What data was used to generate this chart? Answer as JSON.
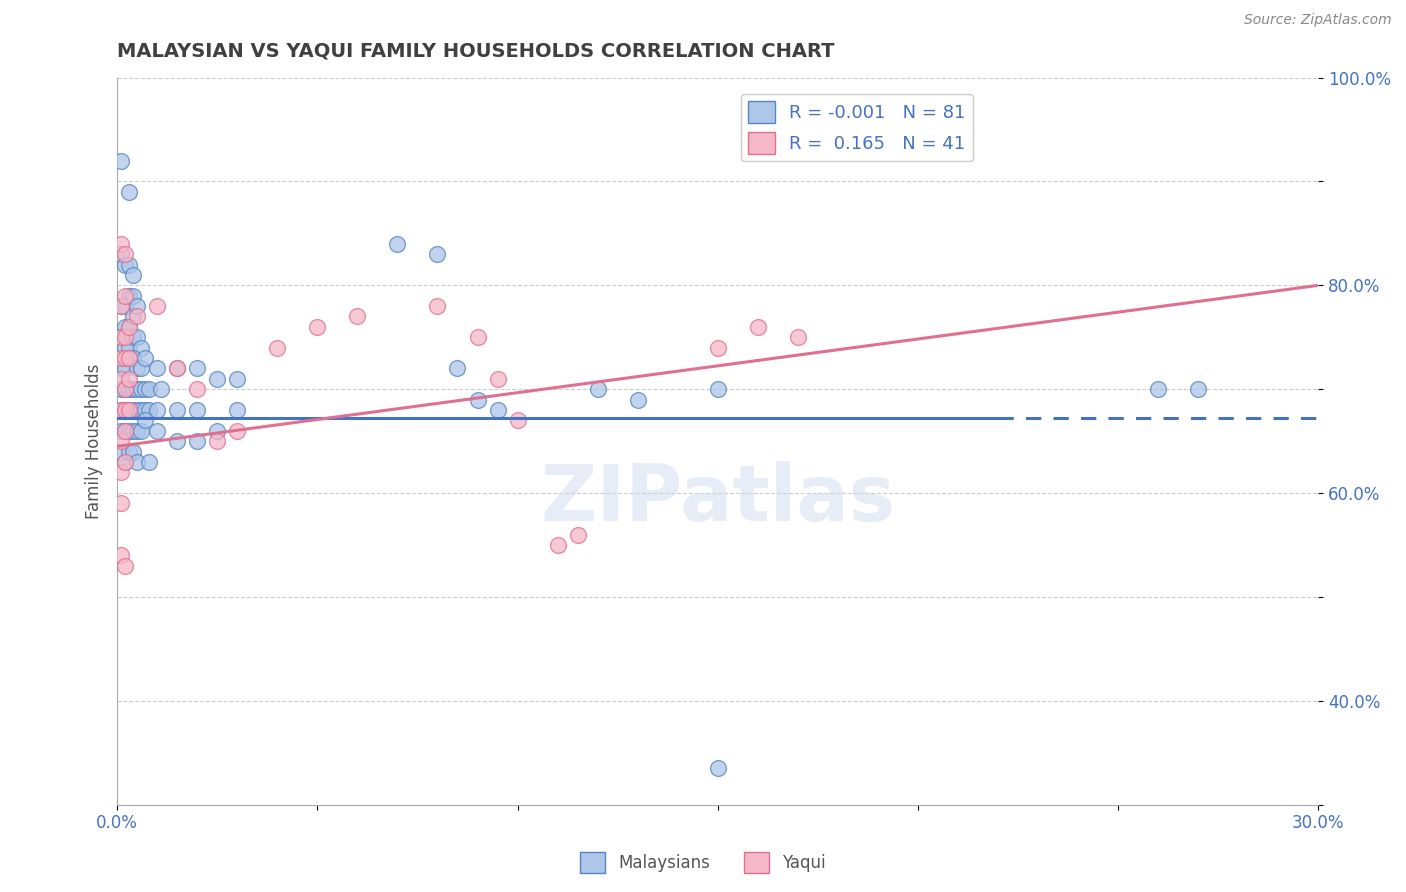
{
  "title": "MALAYSIAN VS YAQUI FAMILY HOUSEHOLDS CORRELATION CHART",
  "source": "Source: ZipAtlas.com",
  "ylabel": "Family Households",
  "xlim": [
    0.0,
    0.3
  ],
  "ylim": [
    0.3,
    1.0
  ],
  "grid_color": "#cccccc",
  "title_color": "#404040",
  "title_fontsize": 14,
  "watermark": "ZIPatlas",
  "legend_blue_label": "R = -0.001   N = 81",
  "legend_pink_label": "R =  0.165   N = 41",
  "blue_color": "#aec6e8",
  "pink_color": "#f4b8c8",
  "blue_edge_color": "#5585c5",
  "pink_edge_color": "#e07090",
  "blue_line_color": "#4472c4",
  "pink_line_color": "#e07090",
  "tick_color": "#4472c4",
  "axis_label_color": "#555555",
  "blue_line_y_at_0": 0.672,
  "blue_line_y_at_30": 0.672,
  "pink_line_y_at_0": 0.645,
  "pink_line_y_at_30": 0.8,
  "blue_points": [
    [
      0.001,
      0.92
    ],
    [
      0.003,
      0.89
    ],
    [
      0.001,
      0.83
    ],
    [
      0.002,
      0.82
    ],
    [
      0.003,
      0.82
    ],
    [
      0.004,
      0.81
    ],
    [
      0.001,
      0.78
    ],
    [
      0.002,
      0.78
    ],
    [
      0.003,
      0.79
    ],
    [
      0.004,
      0.79
    ],
    [
      0.002,
      0.76
    ],
    [
      0.003,
      0.76
    ],
    [
      0.004,
      0.77
    ],
    [
      0.005,
      0.78
    ],
    [
      0.001,
      0.75
    ],
    [
      0.002,
      0.74
    ],
    [
      0.003,
      0.74
    ],
    [
      0.004,
      0.75
    ],
    [
      0.005,
      0.75
    ],
    [
      0.006,
      0.74
    ],
    [
      0.001,
      0.72
    ],
    [
      0.002,
      0.72
    ],
    [
      0.003,
      0.73
    ],
    [
      0.004,
      0.73
    ],
    [
      0.005,
      0.72
    ],
    [
      0.006,
      0.72
    ],
    [
      0.007,
      0.73
    ],
    [
      0.001,
      0.7
    ],
    [
      0.002,
      0.7
    ],
    [
      0.003,
      0.7
    ],
    [
      0.004,
      0.7
    ],
    [
      0.005,
      0.7
    ],
    [
      0.006,
      0.7
    ],
    [
      0.007,
      0.7
    ],
    [
      0.008,
      0.7
    ],
    [
      0.001,
      0.68
    ],
    [
      0.002,
      0.68
    ],
    [
      0.003,
      0.68
    ],
    [
      0.004,
      0.68
    ],
    [
      0.005,
      0.68
    ],
    [
      0.006,
      0.68
    ],
    [
      0.007,
      0.68
    ],
    [
      0.008,
      0.68
    ],
    [
      0.001,
      0.66
    ],
    [
      0.002,
      0.66
    ],
    [
      0.003,
      0.66
    ],
    [
      0.004,
      0.66
    ],
    [
      0.005,
      0.66
    ],
    [
      0.006,
      0.66
    ],
    [
      0.007,
      0.67
    ],
    [
      0.001,
      0.64
    ],
    [
      0.002,
      0.63
    ],
    [
      0.003,
      0.64
    ],
    [
      0.004,
      0.64
    ],
    [
      0.005,
      0.63
    ],
    [
      0.008,
      0.63
    ],
    [
      0.01,
      0.72
    ],
    [
      0.01,
      0.68
    ],
    [
      0.01,
      0.66
    ],
    [
      0.011,
      0.7
    ],
    [
      0.015,
      0.72
    ],
    [
      0.015,
      0.68
    ],
    [
      0.015,
      0.65
    ],
    [
      0.02,
      0.72
    ],
    [
      0.02,
      0.68
    ],
    [
      0.02,
      0.65
    ],
    [
      0.025,
      0.71
    ],
    [
      0.025,
      0.66
    ],
    [
      0.03,
      0.71
    ],
    [
      0.03,
      0.68
    ],
    [
      0.07,
      0.84
    ],
    [
      0.08,
      0.83
    ],
    [
      0.085,
      0.72
    ],
    [
      0.09,
      0.69
    ],
    [
      0.095,
      0.68
    ],
    [
      0.12,
      0.7
    ],
    [
      0.13,
      0.69
    ],
    [
      0.15,
      0.7
    ],
    [
      0.15,
      0.335
    ],
    [
      0.26,
      0.7
    ],
    [
      0.27,
      0.7
    ]
  ],
  "pink_points": [
    [
      0.001,
      0.84
    ],
    [
      0.002,
      0.83
    ],
    [
      0.001,
      0.78
    ],
    [
      0.002,
      0.79
    ],
    [
      0.001,
      0.75
    ],
    [
      0.002,
      0.75
    ],
    [
      0.003,
      0.76
    ],
    [
      0.001,
      0.73
    ],
    [
      0.002,
      0.73
    ],
    [
      0.003,
      0.73
    ],
    [
      0.001,
      0.71
    ],
    [
      0.002,
      0.7
    ],
    [
      0.003,
      0.71
    ],
    [
      0.001,
      0.68
    ],
    [
      0.002,
      0.68
    ],
    [
      0.003,
      0.68
    ],
    [
      0.001,
      0.65
    ],
    [
      0.002,
      0.66
    ],
    [
      0.001,
      0.62
    ],
    [
      0.002,
      0.63
    ],
    [
      0.001,
      0.59
    ],
    [
      0.001,
      0.54
    ],
    [
      0.002,
      0.53
    ],
    [
      0.005,
      0.77
    ],
    [
      0.01,
      0.78
    ],
    [
      0.015,
      0.72
    ],
    [
      0.02,
      0.7
    ],
    [
      0.025,
      0.65
    ],
    [
      0.03,
      0.66
    ],
    [
      0.04,
      0.74
    ],
    [
      0.05,
      0.76
    ],
    [
      0.06,
      0.77
    ],
    [
      0.08,
      0.78
    ],
    [
      0.09,
      0.75
    ],
    [
      0.095,
      0.71
    ],
    [
      0.1,
      0.67
    ],
    [
      0.11,
      0.55
    ],
    [
      0.115,
      0.56
    ],
    [
      0.15,
      0.74
    ],
    [
      0.16,
      0.76
    ],
    [
      0.17,
      0.75
    ]
  ]
}
